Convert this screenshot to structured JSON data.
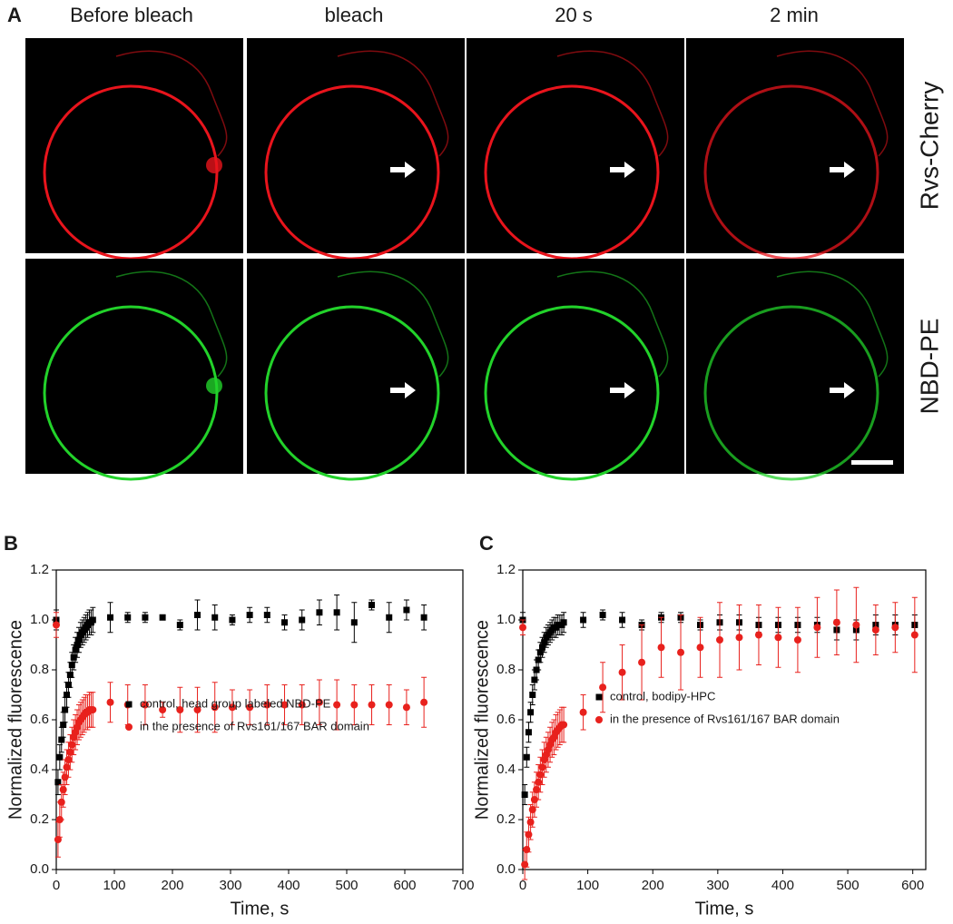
{
  "panel_a": {
    "label": "A",
    "columns": [
      "Before bleach",
      "bleach",
      "20 s",
      "2 min"
    ],
    "rows": [
      "Rvs-Cherry",
      "NBD-PE"
    ]
  },
  "chart_data": [
    {
      "type": "scatter",
      "panel_label": "B",
      "x_label": "Time, s",
      "y_label": "Normalized fluorescence",
      "xlim": [
        0,
        700
      ],
      "xticks": [
        0,
        100,
        200,
        300,
        400,
        500,
        600,
        700
      ],
      "ylim": [
        0,
        1.2
      ],
      "yticks": [
        {
          "value": 0,
          "label": "0.0"
        },
        0.2,
        0.4,
        0.6,
        0.8,
        {
          "value": 1,
          "label": "1.0"
        },
        1.2
      ],
      "legend": "center",
      "series": [
        {
          "name": "control, head group labeled NBD-PE",
          "color": "#000000",
          "marker": "square",
          "x": [
            0,
            3,
            6,
            9,
            12,
            15,
            18,
            21,
            24,
            27,
            30,
            33,
            36,
            39,
            42,
            45,
            48,
            51,
            54,
            57,
            60,
            63,
            93,
            123,
            153,
            183,
            213,
            243,
            273,
            303,
            333,
            363,
            393,
            423,
            453,
            483,
            513,
            543,
            573,
            603,
            633
          ],
          "values": [
            1.0,
            0.35,
            0.45,
            0.52,
            0.58,
            0.64,
            0.7,
            0.74,
            0.78,
            0.82,
            0.85,
            0.88,
            0.9,
            0.92,
            0.94,
            0.95,
            0.96,
            0.97,
            0.98,
            0.99,
            0.99,
            1.0,
            1.01,
            1.01,
            1.01,
            1.01,
            0.98,
            1.02,
            1.01,
            1.0,
            1.02,
            1.02,
            0.99,
            1.0,
            1.03,
            1.03,
            0.99,
            1.06,
            1.01,
            1.04,
            1.01
          ],
          "errors": [
            0.04,
            0.05,
            0.05,
            0.05,
            0.05,
            0.05,
            0.05,
            0.05,
            0.05,
            0.05,
            0.05,
            0.05,
            0.05,
            0.05,
            0.05,
            0.05,
            0.05,
            0.05,
            0.05,
            0.05,
            0.05,
            0.05,
            0.06,
            0.02,
            0.02,
            0.01,
            0.02,
            0.06,
            0.05,
            0.02,
            0.03,
            0.03,
            0.03,
            0.04,
            0.05,
            0.07,
            0.08,
            0.02,
            0.06,
            0.04,
            0.05
          ]
        },
        {
          "name": "in the presence of Rvs161/167 BAR domain",
          "color": "#e8211d",
          "marker": "circle",
          "x": [
            0,
            3,
            6,
            9,
            12,
            15,
            18,
            21,
            24,
            27,
            30,
            33,
            36,
            39,
            42,
            45,
            48,
            51,
            54,
            57,
            60,
            63,
            93,
            123,
            153,
            183,
            213,
            243,
            273,
            303,
            333,
            363,
            393,
            423,
            453,
            483,
            513,
            543,
            573,
            603,
            633
          ],
          "values": [
            0.98,
            0.12,
            0.2,
            0.27,
            0.32,
            0.37,
            0.41,
            0.44,
            0.47,
            0.5,
            0.53,
            0.55,
            0.57,
            0.59,
            0.6,
            0.61,
            0.62,
            0.63,
            0.63,
            0.64,
            0.64,
            0.64,
            0.67,
            0.66,
            0.66,
            0.64,
            0.64,
            0.64,
            0.65,
            0.65,
            0.65,
            0.66,
            0.66,
            0.66,
            0.67,
            0.66,
            0.66,
            0.66,
            0.66,
            0.65,
            0.67
          ],
          "errors": [
            0.05,
            0.07,
            0.07,
            0.07,
            0.07,
            0.07,
            0.07,
            0.07,
            0.07,
            0.07,
            0.07,
            0.07,
            0.07,
            0.07,
            0.07,
            0.07,
            0.07,
            0.07,
            0.07,
            0.07,
            0.07,
            0.07,
            0.08,
            0.08,
            0.08,
            0.03,
            0.09,
            0.09,
            0.1,
            0.07,
            0.07,
            0.08,
            0.08,
            0.08,
            0.09,
            0.1,
            0.08,
            0.08,
            0.08,
            0.07,
            0.1
          ]
        }
      ]
    },
    {
      "type": "scatter",
      "panel_label": "C",
      "x_label": "Time, s",
      "y_label": "Normalized fluorescence",
      "xlim": [
        0,
        620
      ],
      "xticks": [
        0,
        100,
        200,
        300,
        400,
        500,
        600
      ],
      "ylim": [
        0,
        1.2
      ],
      "yticks": [
        {
          "value": 0,
          "label": "0.0"
        },
        0.2,
        0.4,
        0.6,
        0.8,
        {
          "value": 1,
          "label": "1.0"
        },
        1.2
      ],
      "legend": "center",
      "series": [
        {
          "name": "control,  bodipy-HPC",
          "color": "#000000",
          "marker": "square",
          "x": [
            0,
            3,
            6,
            9,
            12,
            15,
            18,
            21,
            24,
            27,
            30,
            33,
            36,
            39,
            42,
            45,
            48,
            51,
            54,
            57,
            60,
            63,
            93,
            123,
            153,
            183,
            213,
            243,
            273,
            303,
            333,
            363,
            393,
            423,
            453,
            483,
            513,
            543,
            573,
            603
          ],
          "values": [
            1.0,
            0.3,
            0.45,
            0.55,
            0.63,
            0.7,
            0.76,
            0.8,
            0.84,
            0.87,
            0.89,
            0.91,
            0.93,
            0.94,
            0.95,
            0.96,
            0.97,
            0.97,
            0.98,
            0.98,
            0.98,
            0.99,
            1.0,
            1.02,
            1.0,
            0.98,
            1.01,
            1.01,
            0.98,
            0.99,
            0.99,
            0.98,
            0.98,
            0.98,
            0.98,
            0.96,
            0.96,
            0.98,
            0.98,
            0.98
          ],
          "errors": [
            0.03,
            0.04,
            0.04,
            0.04,
            0.04,
            0.04,
            0.04,
            0.04,
            0.04,
            0.04,
            0.04,
            0.04,
            0.04,
            0.04,
            0.04,
            0.04,
            0.04,
            0.04,
            0.04,
            0.04,
            0.04,
            0.04,
            0.03,
            0.02,
            0.03,
            0.02,
            0.02,
            0.02,
            0.02,
            0.03,
            0.03,
            0.03,
            0.03,
            0.03,
            0.03,
            0.04,
            0.04,
            0.04,
            0.04,
            0.04
          ]
        },
        {
          "name": "in the presence of Rvs161/167 BAR domain",
          "color": "#e8211d",
          "marker": "circle",
          "x": [
            0,
            3,
            6,
            9,
            12,
            15,
            18,
            21,
            24,
            27,
            30,
            33,
            36,
            39,
            42,
            45,
            48,
            51,
            54,
            57,
            60,
            63,
            93,
            123,
            153,
            183,
            213,
            243,
            273,
            303,
            333,
            363,
            393,
            423,
            453,
            483,
            513,
            543,
            573,
            603
          ],
          "values": [
            0.97,
            0.02,
            0.08,
            0.14,
            0.19,
            0.24,
            0.28,
            0.32,
            0.35,
            0.38,
            0.41,
            0.44,
            0.46,
            0.48,
            0.5,
            0.52,
            0.53,
            0.55,
            0.56,
            0.57,
            0.58,
            0.58,
            0.63,
            0.73,
            0.79,
            0.83,
            0.89,
            0.87,
            0.89,
            0.92,
            0.93,
            0.94,
            0.93,
            0.92,
            0.97,
            0.99,
            0.98,
            0.96,
            0.97,
            0.94
          ],
          "errors": [
            0.03,
            0.06,
            0.07,
            0.07,
            0.07,
            0.07,
            0.07,
            0.07,
            0.07,
            0.07,
            0.07,
            0.07,
            0.07,
            0.07,
            0.07,
            0.07,
            0.07,
            0.07,
            0.07,
            0.07,
            0.07,
            0.07,
            0.07,
            0.1,
            0.11,
            0.15,
            0.12,
            0.15,
            0.12,
            0.15,
            0.13,
            0.12,
            0.12,
            0.13,
            0.12,
            0.13,
            0.15,
            0.1,
            0.1,
            0.15
          ]
        }
      ]
    }
  ]
}
